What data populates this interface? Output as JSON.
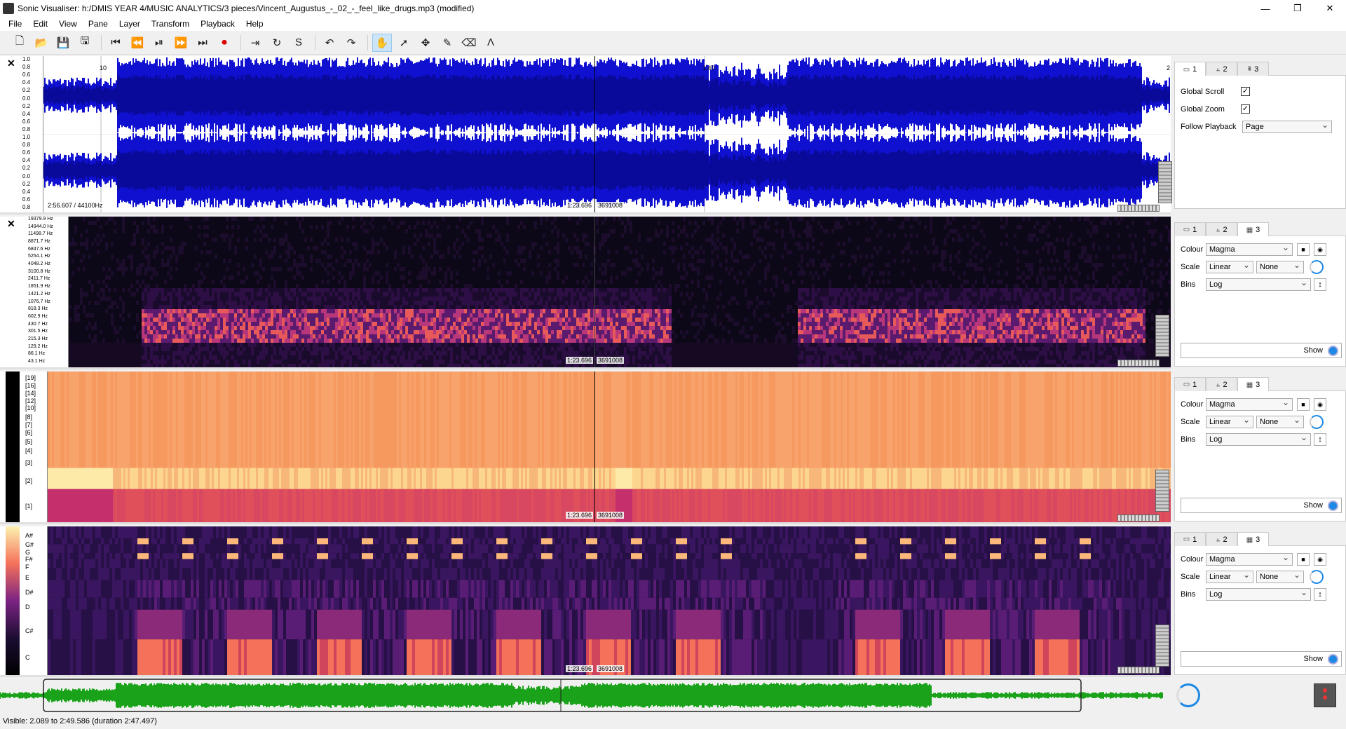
{
  "window": {
    "title": "Sonic Visualiser: h:/DMIS YEAR 4/MUSIC ANALYTICS/3 pieces/Vincent_Augustus_-_02_-_feel_like_drugs.mp3 (modified)",
    "controls": [
      "—",
      "❐",
      "✕"
    ]
  },
  "menu": [
    "File",
    "Edit",
    "View",
    "Pane",
    "Layer",
    "Transform",
    "Playback",
    "Help"
  ],
  "toolbar": {
    "groups": [
      [
        "new-icon",
        "open-icon",
        "save-icon",
        "save-session-icon"
      ],
      [
        "rewind-start-icon",
        "rewind-icon",
        "play-pause-icon",
        "fast-forward-icon",
        "ffwd-end-icon",
        "record-icon"
      ],
      [
        "play-selection-icon",
        "loop-icon",
        "solo-icon"
      ],
      [
        "undo-icon",
        "redo-icon"
      ],
      [
        "navigate-icon",
        "select-icon",
        "move-icon",
        "draw-icon",
        "erase-icon",
        "measure-icon"
      ]
    ],
    "glyphs": {
      "new-icon": "🗋",
      "open-icon": "📂",
      "save-icon": "💾",
      "save-session-icon": "🖫",
      "rewind-start-icon": "⏮",
      "rewind-icon": "⏪",
      "play-pause-icon": "⏯",
      "fast-forward-icon": "⏩",
      "ffwd-end-icon": "⏭",
      "record-icon": "⏺",
      "play-selection-icon": "⇥",
      "loop-icon": "↻",
      "solo-icon": "S",
      "undo-icon": "↶",
      "redo-icon": "↷",
      "navigate-icon": "✋",
      "select-icon": "➚",
      "move-icon": "✥",
      "draw-icon": "✎",
      "erase-icon": "⌫",
      "measure-icon": "Λ"
    },
    "active": "navigate-icon"
  },
  "panes": [
    {
      "id": "waveform",
      "close": "✕",
      "scale_labels": [
        "1.0",
        "0.8",
        "0.6",
        "0.4",
        "0.2",
        "0.0",
        "0.2",
        "0.4",
        "0.6",
        "0.8",
        "1.0",
        "0.8",
        "0.6",
        "0.4",
        "0.2",
        "0.0",
        "0.2",
        "0.4",
        "0.6",
        "0.8"
      ],
      "ruler_labels": [
        "10",
        "1:40",
        "2"
      ],
      "info": "2:56.607 / 44100Hz",
      "cursor_time": "1:23.696",
      "cursor_frame": "3691008",
      "tabs": [
        "1",
        "2",
        "3"
      ],
      "tab_glyphs": [
        "▭",
        "⫠",
        "⩩"
      ],
      "active_tab": 0,
      "props": {
        "global_scroll_label": "Global Scroll",
        "global_zoom_label": "Global Zoom",
        "follow_label": "Follow Playback",
        "follow_value": "Page",
        "check_mark": "✓"
      }
    },
    {
      "id": "spectrogram",
      "close": "✕",
      "scale_labels": [
        "19379.9 Hz",
        "14944.0 Hz",
        "11498.7 Hz",
        "8871.7 Hz",
        "6847.6 Hz",
        "5254.1 Hz",
        "4048.2 Hz",
        "3100.8 Hz",
        "2411.7 Hz",
        "1851.9 Hz",
        "1421.2 Hz",
        "1076.7 Hz",
        "818.3 Hz",
        "602.9 Hz",
        "430.7 Hz",
        "301.5 Hz",
        "215.3 Hz",
        "129.2 Hz",
        "86.1 Hz",
        "43.1 Hz"
      ],
      "cursor_time": "1:23.696",
      "cursor_frame": "3691008",
      "tabs": [
        "1",
        "2",
        "3"
      ],
      "tab_glyphs": [
        "▭",
        "⫠",
        "▦"
      ],
      "active_tab": 2,
      "props": {
        "colour_label": "Colour",
        "colour_value": "Magma",
        "scale_label": "Scale",
        "scale_value": "Linear",
        "scale_value2": "None",
        "bins_label": "Bins",
        "bins_value": "Log",
        "show_label": "Show"
      }
    },
    {
      "id": "mfcc",
      "close": "✕",
      "scale_labels": [
        "[19]",
        "[16]",
        "[14]",
        "[12]",
        "[10]",
        "[8]",
        "[7]",
        "[6]",
        "[5]",
        "[4]",
        "[3]",
        "[2]",
        "[1]"
      ],
      "cursor_time": "1:23.696",
      "cursor_frame": "3691008",
      "tabs": [
        "1",
        "2",
        "3"
      ],
      "tab_glyphs": [
        "▭",
        "⫠",
        "▦"
      ],
      "active_tab": 2,
      "props": {
        "colour_label": "Colour",
        "colour_value": "Magma",
        "scale_label": "Scale",
        "scale_value": "Linear",
        "scale_value2": "None",
        "bins_label": "Bins",
        "bins_value": "Log",
        "show_label": "Show"
      }
    },
    {
      "id": "chromagram",
      "close": "✕",
      "scale_labels": [
        "A#",
        "G#",
        "G",
        "F#",
        "F",
        "E",
        "D#",
        "D",
        "C#",
        "C"
      ],
      "cursor_time": "1:23.696",
      "cursor_frame": "3691008",
      "tabs": [
        "1",
        "2",
        "3"
      ],
      "tab_glyphs": [
        "▭",
        "⫠",
        "▦"
      ],
      "active_tab": 2,
      "props": {
        "colour_label": "Colour",
        "colour_value": "Magma",
        "scale_label": "Scale",
        "scale_value": "Linear",
        "scale_value2": "None",
        "bins_label": "Bins",
        "bins_value": "Log",
        "show_label": "Show"
      }
    }
  ],
  "status": "Visible: 2.089 to 2:49.586 (duration 2:47.497)",
  "colors": {
    "waveform": "#1010d0",
    "overview": "#1aa31a",
    "accent": "#1e88e5"
  }
}
